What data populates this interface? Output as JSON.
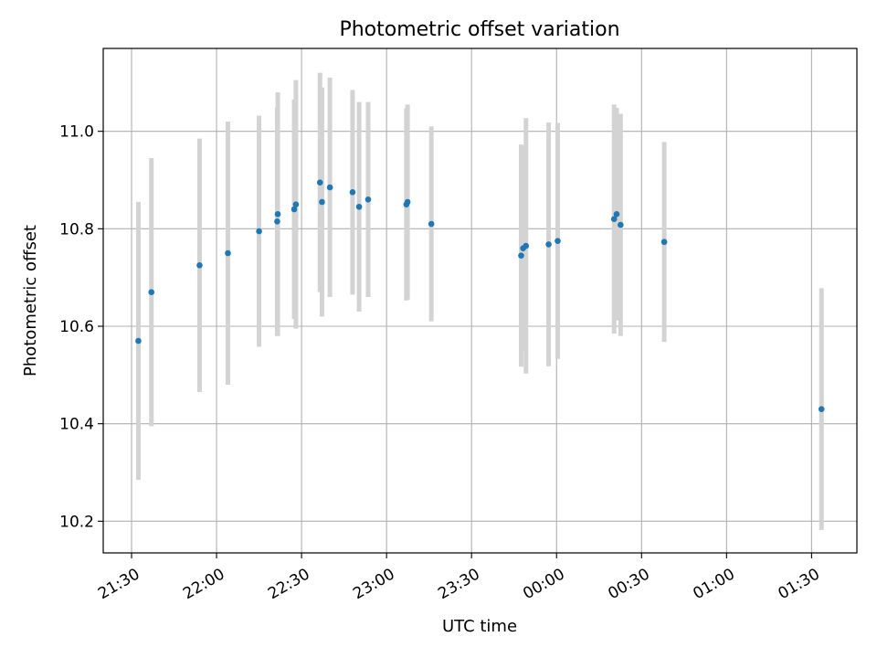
{
  "chart_data": {
    "type": "scatter",
    "title": "Photometric offset variation",
    "xlabel": "UTC time",
    "ylabel": "Photometric offset",
    "x_ticks": [
      "21:30",
      "22:00",
      "22:30",
      "23:00",
      "23:30",
      "00:00",
      "00:30",
      "01:00",
      "01:30"
    ],
    "y_ticks": [
      "10.2",
      "10.4",
      "10.6",
      "10.8",
      "11.0"
    ],
    "x_tick_values_minutes": [
      0,
      30,
      60,
      90,
      120,
      150,
      180,
      210,
      240
    ],
    "y_tick_values": [
      10.2,
      10.4,
      10.6,
      10.8,
      11.0
    ],
    "xlim_minutes": [
      -10,
      256
    ],
    "ylim": [
      10.135,
      11.17
    ],
    "grid": true,
    "point_color": "#1f77b4",
    "errorbar_color": "#d3d3d3",
    "points": [
      {
        "t": "21:32",
        "x": 2.4,
        "y": 10.57,
        "yerr": 0.285
      },
      {
        "t": "21:37",
        "x": 7.0,
        "y": 10.67,
        "yerr": 0.275
      },
      {
        "t": "21:54",
        "x": 24.0,
        "y": 10.725,
        "yerr": 0.26
      },
      {
        "t": "22:04",
        "x": 34.0,
        "y": 10.75,
        "yerr": 0.27
      },
      {
        "t": "22:15",
        "x": 45.0,
        "y": 10.795,
        "yerr": 0.237
      },
      {
        "t": "22:21",
        "x": 51.4,
        "y": 10.815,
        "yerr": 0.235
      },
      {
        "t": "22:21",
        "x": 51.6,
        "y": 10.83,
        "yerr": 0.25
      },
      {
        "t": "22:27",
        "x": 57.4,
        "y": 10.84,
        "yerr": 0.225
      },
      {
        "t": "22:28",
        "x": 58.0,
        "y": 10.85,
        "yerr": 0.255
      },
      {
        "t": "22:36",
        "x": 66.5,
        "y": 10.895,
        "yerr": 0.225
      },
      {
        "t": "22:37",
        "x": 67.2,
        "y": 10.855,
        "yerr": 0.235
      },
      {
        "t": "22:40",
        "x": 70.0,
        "y": 10.885,
        "yerr": 0.225
      },
      {
        "t": "22:48",
        "x": 78.0,
        "y": 10.875,
        "yerr": 0.21
      },
      {
        "t": "22:50",
        "x": 80.3,
        "y": 10.845,
        "yerr": 0.215
      },
      {
        "t": "22:53",
        "x": 83.5,
        "y": 10.86,
        "yerr": 0.2
      },
      {
        "t": "23:07",
        "x": 97.0,
        "y": 10.85,
        "yerr": 0.197
      },
      {
        "t": "23:07",
        "x": 97.4,
        "y": 10.855,
        "yerr": 0.2
      },
      {
        "t": "23:16",
        "x": 105.8,
        "y": 10.81,
        "yerr": 0.2
      },
      {
        "t": "23:48",
        "x": 137.5,
        "y": 10.745,
        "yerr": 0.228
      },
      {
        "t": "23:48",
        "x": 138.2,
        "y": 10.76,
        "yerr": 0.21
      },
      {
        "t": "23:49",
        "x": 139.2,
        "y": 10.765,
        "yerr": 0.262
      },
      {
        "t": "23:57",
        "x": 147.2,
        "y": 10.768,
        "yerr": 0.25
      },
      {
        "t": "00:00",
        "x": 150.4,
        "y": 10.775,
        "yerr": 0.242
      },
      {
        "t": "00:20",
        "x": 170.3,
        "y": 10.82,
        "yerr": 0.235
      },
      {
        "t": "00:21",
        "x": 171.2,
        "y": 10.83,
        "yerr": 0.218
      },
      {
        "t": "00:22",
        "x": 172.6,
        "y": 10.808,
        "yerr": 0.228
      },
      {
        "t": "00:38",
        "x": 188.0,
        "y": 10.773,
        "yerr": 0.205
      },
      {
        "t": "01:33",
        "x": 243.5,
        "y": 10.43,
        "yerr": 0.248
      }
    ]
  }
}
